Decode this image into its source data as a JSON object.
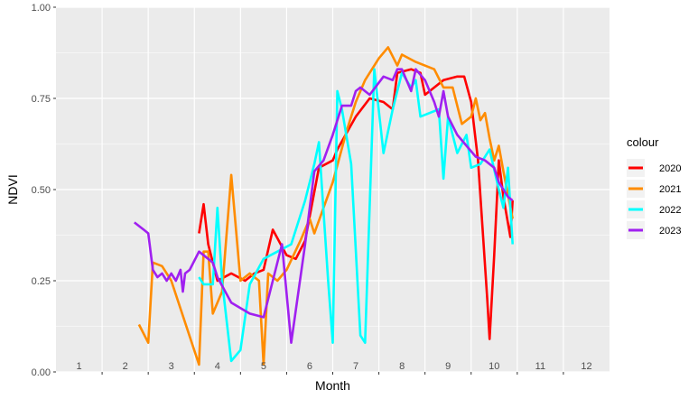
{
  "chart_data": {
    "type": "line",
    "xlabel": "Month",
    "ylabel": "NDVI",
    "ylim": [
      0,
      1
    ],
    "y_ticks": [
      "0.00",
      "0.25",
      "0.50",
      "0.75",
      "1.00"
    ],
    "month_labels": [
      "1",
      "2",
      "3",
      "4",
      "5",
      "6",
      "7",
      "8",
      "9",
      "10",
      "11",
      "12"
    ],
    "legend_title": "colour",
    "grid": true,
    "legend_position": "right",
    "series": [
      {
        "name": "2020",
        "color": "#ff0000",
        "points": [
          [
            3.6,
            0.38
          ],
          [
            3.7,
            0.46
          ],
          [
            3.8,
            0.35
          ],
          [
            4.0,
            0.25
          ],
          [
            4.3,
            0.27
          ],
          [
            4.6,
            0.25
          ],
          [
            4.8,
            0.27
          ],
          [
            5.0,
            0.28
          ],
          [
            5.2,
            0.39
          ],
          [
            5.5,
            0.32
          ],
          [
            5.7,
            0.31
          ],
          [
            5.9,
            0.36
          ],
          [
            6.2,
            0.56
          ],
          [
            6.5,
            0.58
          ],
          [
            6.6,
            0.61
          ],
          [
            7.0,
            0.7
          ],
          [
            7.3,
            0.75
          ],
          [
            7.6,
            0.74
          ],
          [
            7.8,
            0.72
          ],
          [
            7.9,
            0.82
          ],
          [
            8.2,
            0.83
          ],
          [
            8.4,
            0.82
          ],
          [
            8.5,
            0.76
          ],
          [
            8.9,
            0.8
          ],
          [
            9.2,
            0.81
          ],
          [
            9.35,
            0.81
          ],
          [
            9.5,
            0.74
          ],
          [
            9.65,
            0.58
          ],
          [
            9.85,
            0.2
          ],
          [
            9.9,
            0.09
          ],
          [
            10.0,
            0.32
          ],
          [
            10.1,
            0.58
          ],
          [
            10.2,
            0.48
          ],
          [
            10.35,
            0.37
          ],
          [
            10.4,
            0.47
          ]
        ]
      },
      {
        "name": "2021",
        "color": "#ff8c00",
        "points": [
          [
            2.3,
            0.13
          ],
          [
            2.5,
            0.08
          ],
          [
            2.6,
            0.3
          ],
          [
            2.8,
            0.29
          ],
          [
            3.0,
            0.25
          ],
          [
            3.6,
            0.02
          ],
          [
            3.7,
            0.33
          ],
          [
            3.8,
            0.33
          ],
          [
            3.9,
            0.16
          ],
          [
            4.1,
            0.22
          ],
          [
            4.3,
            0.54
          ],
          [
            4.5,
            0.25
          ],
          [
            4.7,
            0.27
          ],
          [
            4.9,
            0.25
          ],
          [
            5.0,
            0.02
          ],
          [
            5.1,
            0.27
          ],
          [
            5.3,
            0.25
          ],
          [
            5.5,
            0.28
          ],
          [
            5.8,
            0.36
          ],
          [
            6.0,
            0.42
          ],
          [
            6.1,
            0.38
          ],
          [
            6.5,
            0.52
          ],
          [
            6.8,
            0.66
          ],
          [
            7.0,
            0.74
          ],
          [
            7.2,
            0.8
          ],
          [
            7.5,
            0.86
          ],
          [
            7.7,
            0.89
          ],
          [
            7.9,
            0.84
          ],
          [
            8.0,
            0.87
          ],
          [
            8.3,
            0.85
          ],
          [
            8.7,
            0.83
          ],
          [
            8.9,
            0.78
          ],
          [
            9.1,
            0.78
          ],
          [
            9.3,
            0.68
          ],
          [
            9.5,
            0.7
          ],
          [
            9.6,
            0.75
          ],
          [
            9.7,
            0.69
          ],
          [
            9.8,
            0.71
          ],
          [
            9.9,
            0.64
          ],
          [
            10.0,
            0.58
          ],
          [
            10.1,
            0.62
          ],
          [
            10.2,
            0.55
          ],
          [
            10.4,
            0.42
          ]
        ]
      },
      {
        "name": "2022",
        "color": "#00ffff",
        "points": [
          [
            3.6,
            0.26
          ],
          [
            3.7,
            0.24
          ],
          [
            3.9,
            0.24
          ],
          [
            4.0,
            0.45
          ],
          [
            4.1,
            0.25
          ],
          [
            4.3,
            0.03
          ],
          [
            4.5,
            0.06
          ],
          [
            4.7,
            0.24
          ],
          [
            5.0,
            0.31
          ],
          [
            5.3,
            0.33
          ],
          [
            5.6,
            0.35
          ],
          [
            5.9,
            0.47
          ],
          [
            6.1,
            0.57
          ],
          [
            6.2,
            0.63
          ],
          [
            6.4,
            0.25
          ],
          [
            6.5,
            0.08
          ],
          [
            6.6,
            0.77
          ],
          [
            6.7,
            0.72
          ],
          [
            6.9,
            0.57
          ],
          [
            7.1,
            0.1
          ],
          [
            7.2,
            0.08
          ],
          [
            7.4,
            0.83
          ],
          [
            7.6,
            0.6
          ],
          [
            7.8,
            0.72
          ],
          [
            8.0,
            0.82
          ],
          [
            8.2,
            0.78
          ],
          [
            8.3,
            0.8
          ],
          [
            8.4,
            0.7
          ],
          [
            8.8,
            0.72
          ],
          [
            8.9,
            0.53
          ],
          [
            9.0,
            0.7
          ],
          [
            9.2,
            0.6
          ],
          [
            9.4,
            0.65
          ],
          [
            9.5,
            0.56
          ],
          [
            9.7,
            0.57
          ],
          [
            9.9,
            0.61
          ],
          [
            10.1,
            0.5
          ],
          [
            10.2,
            0.45
          ],
          [
            10.3,
            0.56
          ],
          [
            10.4,
            0.35
          ]
        ]
      },
      {
        "name": "2023",
        "color": "#a020f0",
        "points": [
          [
            2.2,
            0.41
          ],
          [
            2.4,
            0.39
          ],
          [
            2.5,
            0.38
          ],
          [
            2.6,
            0.28
          ],
          [
            2.7,
            0.26
          ],
          [
            2.8,
            0.27
          ],
          [
            2.9,
            0.25
          ],
          [
            3.0,
            0.27
          ],
          [
            3.1,
            0.25
          ],
          [
            3.2,
            0.28
          ],
          [
            3.25,
            0.22
          ],
          [
            3.3,
            0.27
          ],
          [
            3.4,
            0.28
          ],
          [
            3.6,
            0.33
          ],
          [
            3.9,
            0.3
          ],
          [
            4.0,
            0.26
          ],
          [
            4.3,
            0.19
          ],
          [
            4.7,
            0.16
          ],
          [
            5.0,
            0.15
          ],
          [
            5.4,
            0.35
          ],
          [
            5.6,
            0.08
          ],
          [
            5.9,
            0.35
          ],
          [
            6.1,
            0.55
          ],
          [
            6.3,
            0.58
          ],
          [
            6.5,
            0.65
          ],
          [
            6.7,
            0.73
          ],
          [
            6.9,
            0.73
          ],
          [
            7.0,
            0.77
          ],
          [
            7.1,
            0.78
          ],
          [
            7.3,
            0.76
          ],
          [
            7.6,
            0.81
          ],
          [
            7.8,
            0.8
          ],
          [
            7.9,
            0.83
          ],
          [
            8.0,
            0.83
          ],
          [
            8.2,
            0.77
          ],
          [
            8.3,
            0.83
          ],
          [
            8.5,
            0.8
          ],
          [
            8.7,
            0.74
          ],
          [
            8.8,
            0.7
          ],
          [
            8.9,
            0.77
          ],
          [
            9.0,
            0.7
          ],
          [
            9.2,
            0.65
          ],
          [
            9.4,
            0.62
          ],
          [
            9.6,
            0.59
          ],
          [
            9.8,
            0.58
          ],
          [
            10.0,
            0.56
          ],
          [
            10.1,
            0.52
          ],
          [
            10.3,
            0.48
          ],
          [
            10.4,
            0.47
          ]
        ]
      }
    ]
  }
}
